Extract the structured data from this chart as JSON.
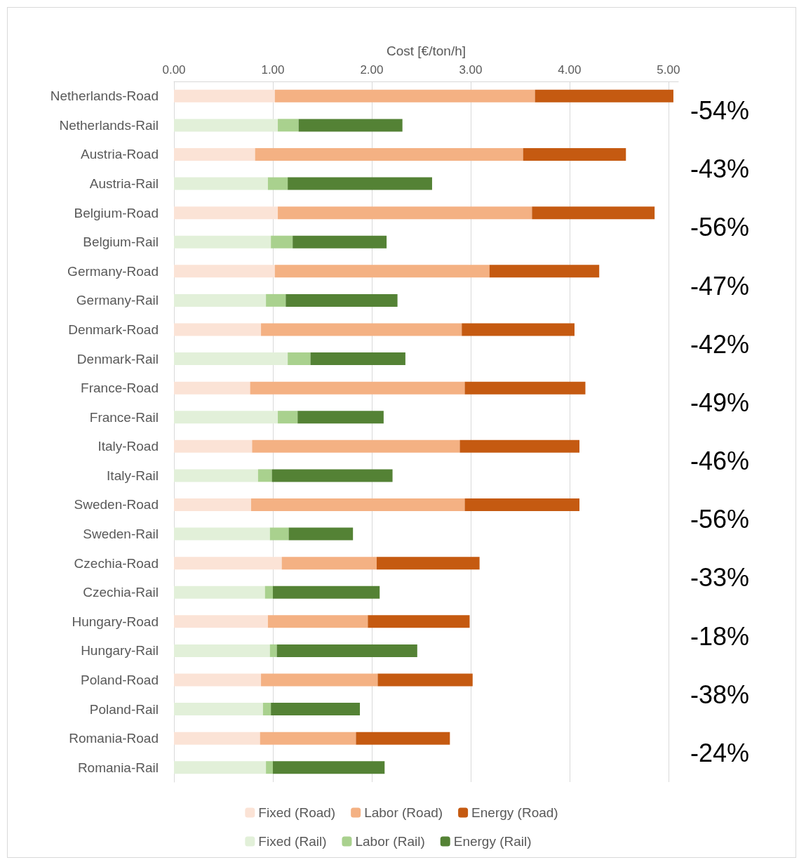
{
  "chart_data": {
    "type": "bar",
    "orientation": "horizontal",
    "stacked": true,
    "xlabel": "Cost [€/ton/h]",
    "categories": [
      "Netherlands-Road",
      "Netherlands-Rail",
      "Austria-Road",
      "Austria-Rail",
      "Belgium-Road",
      "Belgium-Rail",
      "Germany-Road",
      "Germany-Rail",
      "Denmark-Road",
      "Denmark-Rail",
      "France-Road",
      "France-Rail",
      "Italy-Road",
      "Italy-Rail",
      "Sweden-Road",
      "Sweden-Rail",
      "Czechia-Road",
      "Czechia-Rail",
      "Hungary-Road",
      "Hungary-Rail",
      "Poland-Road",
      "Poland-Rail",
      "Romania-Road",
      "Romania-Rail"
    ],
    "series": [
      {
        "name": "Fixed (Road)",
        "color": "#fbe3d6",
        "values": [
          1.02,
          null,
          0.82,
          null,
          1.05,
          null,
          1.02,
          null,
          0.88,
          null,
          0.77,
          null,
          0.79,
          null,
          0.78,
          null,
          1.09,
          null,
          0.95,
          null,
          0.88,
          null,
          0.87,
          null
        ]
      },
      {
        "name": "Labor (Road)",
        "color": "#f4b183",
        "values": [
          2.63,
          null,
          2.71,
          null,
          2.57,
          null,
          2.17,
          null,
          2.03,
          null,
          2.17,
          null,
          2.1,
          null,
          2.16,
          null,
          0.96,
          null,
          1.01,
          null,
          1.18,
          null,
          0.97,
          null
        ]
      },
      {
        "name": "Energy (Road)",
        "color": "#c55a11",
        "values": [
          1.4,
          null,
          1.04,
          null,
          1.24,
          null,
          1.11,
          null,
          1.14,
          null,
          1.22,
          null,
          1.21,
          null,
          1.16,
          null,
          1.04,
          null,
          1.03,
          null,
          0.96,
          null,
          0.95,
          null
        ]
      },
      {
        "name": "Fixed (Rail)",
        "color": "#e2f0d9",
        "values": [
          null,
          1.05,
          null,
          0.95,
          null,
          0.98,
          null,
          0.93,
          null,
          1.15,
          null,
          1.05,
          null,
          0.85,
          null,
          0.97,
          null,
          0.92,
          null,
          0.97,
          null,
          0.9,
          null,
          0.93
        ]
      },
      {
        "name": "Labor (Rail)",
        "color": "#a9d18e",
        "values": [
          null,
          0.21,
          null,
          0.2,
          null,
          0.22,
          null,
          0.2,
          null,
          0.23,
          null,
          0.2,
          null,
          0.14,
          null,
          0.19,
          null,
          0.08,
          null,
          0.07,
          null,
          0.08,
          null,
          0.07
        ]
      },
      {
        "name": "Energy (Rail)",
        "color": "#548235",
        "values": [
          null,
          1.05,
          null,
          1.46,
          null,
          0.95,
          null,
          1.13,
          null,
          0.96,
          null,
          0.87,
          null,
          1.22,
          null,
          0.65,
          null,
          1.08,
          null,
          1.42,
          null,
          0.9,
          null,
          1.13
        ]
      }
    ],
    "xlim": [
      0,
      5.1
    ],
    "xticks": [
      {
        "value": 0,
        "label": "0.00"
      },
      {
        "value": 1,
        "label": "1.00"
      },
      {
        "value": 2,
        "label": "2.00"
      },
      {
        "value": 3,
        "label": "3.00"
      },
      {
        "value": 4,
        "label": "4.00"
      },
      {
        "value": 5,
        "label": "5.00"
      }
    ],
    "grid": "x",
    "legend": "bottom",
    "annotations": [
      "-54%",
      "-43%",
      "-56%",
      "-47%",
      "-42%",
      "-49%",
      "-46%",
      "-56%",
      "-33%",
      "-18%",
      "-38%",
      "-24%"
    ]
  }
}
